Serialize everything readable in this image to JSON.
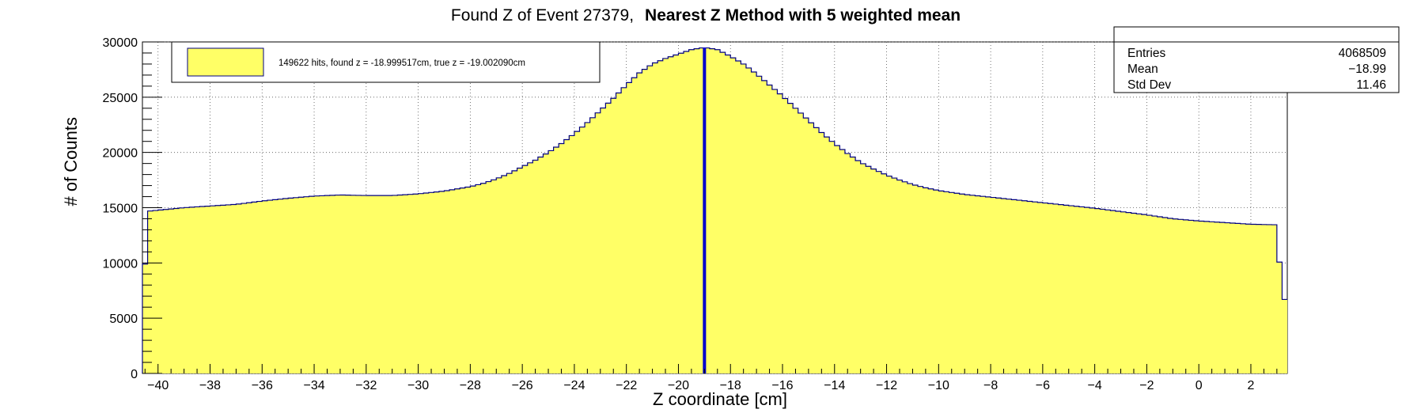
{
  "chart_data": {
    "type": "bar",
    "title_normal": "Found Z of Event 27379,",
    "title_bold": "Nearest Z Method with 5 weighted mean",
    "xlabel": "Z coordinate [cm]",
    "ylabel": "# of Counts",
    "xlim": [
      -40.6,
      3.4
    ],
    "ylim": [
      0,
      30000
    ],
    "x_ticks": [
      -40,
      -38,
      -36,
      -34,
      -32,
      -30,
      -28,
      -26,
      -24,
      -22,
      -20,
      -18,
      -16,
      -14,
      -12,
      -10,
      -8,
      -6,
      -4,
      -2,
      0,
      2
    ],
    "y_ticks": [
      0,
      5000,
      10000,
      15000,
      20000,
      25000,
      30000
    ],
    "grid": true,
    "fill_color": "#ffff66",
    "line_color": "#000080",
    "marker_line": {
      "x": -18.999517,
      "color": "#0000cc"
    },
    "legend": {
      "position": "top-left",
      "label": "149622 hits, found z = -18.999517cm, true z = -19.002090cm"
    },
    "stats": {
      "position": "top-right",
      "rows": [
        {
          "label": "Entries",
          "value": "4068509"
        },
        {
          "label": "Mean",
          "value": "−18.99"
        },
        {
          "label": "Std Dev",
          "value": "11.46"
        }
      ]
    },
    "profile_x": [
      -40.6,
      -40.3,
      -39,
      -37,
      -36,
      -35,
      -34,
      -33,
      -32,
      -31,
      -30,
      -29,
      -28,
      -27.5,
      -27,
      -26.5,
      -26,
      -25.5,
      -25,
      -24.5,
      -24,
      -23.5,
      -23,
      -22.5,
      -22,
      -21.5,
      -21,
      -20.5,
      -20,
      -19.5,
      -19,
      -18.5,
      -18,
      -17.5,
      -17,
      -16.5,
      -16,
      -15.5,
      -15,
      -14.5,
      -14,
      -13.5,
      -13,
      -12.5,
      -12,
      -11.5,
      -11,
      -10.5,
      -10,
      -9,
      -8,
      -7,
      -6,
      -5,
      -4,
      -3,
      -2,
      -1,
      0,
      1,
      2,
      3,
      3.2,
      3.4
    ],
    "profile_y": [
      7500,
      14700,
      15000,
      15300,
      15600,
      15850,
      16050,
      16150,
      16100,
      16100,
      16250,
      16500,
      16900,
      17200,
      17600,
      18100,
      18700,
      19300,
      20000,
      20800,
      21700,
      22700,
      23800,
      24900,
      26100,
      27200,
      28000,
      28500,
      28900,
      29300,
      29500,
      29300,
      28700,
      28000,
      27100,
      26100,
      25100,
      24000,
      22900,
      21800,
      20800,
      19900,
      19100,
      18500,
      17950,
      17500,
      17100,
      16800,
      16550,
      16200,
      15950,
      15700,
      15450,
      15200,
      14950,
      14650,
      14350,
      14000,
      13800,
      13650,
      13500,
      13450,
      6700,
      6700
    ],
    "n_bins": 220
  }
}
